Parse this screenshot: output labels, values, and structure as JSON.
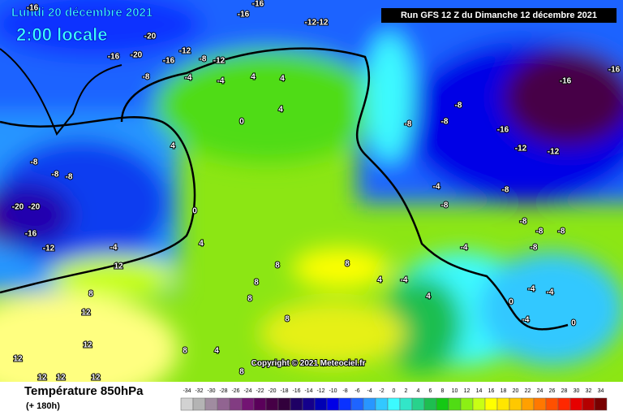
{
  "header": {
    "date": "Lundi 20 décembre 2021",
    "time": "2:00 locale",
    "run": "Run GFS 12 Z du Dimanche 12 décembre 2021"
  },
  "footer": {
    "variable": "Température 850hPa",
    "lead": "(+ 180h)",
    "copyright": "Copyright © 2021 Meteociel.fr"
  },
  "scale": {
    "values": [
      -34,
      -32,
      -30,
      -28,
      -26,
      -24,
      -22,
      -20,
      -18,
      -16,
      -14,
      -12,
      -10,
      -8,
      -6,
      -4,
      -2,
      0,
      2,
      4,
      6,
      8,
      10,
      12,
      14,
      16,
      18,
      20,
      22,
      24,
      26,
      28,
      30,
      32,
      34
    ],
    "colors": [
      "#d2d2d2",
      "#b4b4b4",
      "#a08ca0",
      "#916491",
      "#823c82",
      "#731473",
      "#5a005a",
      "#460046",
      "#32003c",
      "#1e0064",
      "#14008c",
      "#0000b4",
      "#0000e6",
      "#0a32ff",
      "#1e64ff",
      "#2896ff",
      "#32c8ff",
      "#3cfaff",
      "#32e6c8",
      "#28d28c",
      "#1ebe50",
      "#14c814",
      "#50dc14",
      "#8cf014",
      "#c8ff14",
      "#ffff00",
      "#ffe600",
      "#ffc800",
      "#ffa000",
      "#ff7800",
      "#ff5000",
      "#ff2800",
      "#e60000",
      "#b40000",
      "#780000"
    ]
  },
  "map": {
    "labels": [
      "-16",
      "-20",
      "-16",
      "-20",
      "-16",
      "-12",
      "-8",
      "-12",
      "-16",
      "-16",
      "-12-12",
      "-8",
      "-4",
      "4",
      "4",
      "-4",
      "0",
      "4",
      "4",
      "-8",
      "-8",
      "-8",
      "-20",
      "-20",
      "-16",
      "-12",
      "-4",
      "0",
      "4",
      "12",
      "8",
      "8",
      "-8",
      "-8",
      "-8",
      "-16",
      "-12",
      "-12",
      "-16",
      "-16",
      "-4",
      "-8",
      "-8",
      "-8",
      "-8",
      "-8",
      "-8",
      "-4",
      "4",
      "-4",
      "8",
      "8",
      "8",
      "4",
      "-4",
      "-4",
      "0",
      "-4",
      "0",
      "12",
      "12",
      "12",
      "12",
      "12",
      "12",
      "8",
      "4",
      "8",
      "8"
    ]
  }
}
